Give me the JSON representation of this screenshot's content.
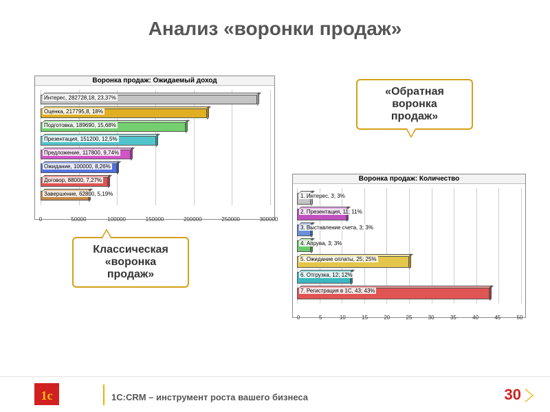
{
  "title": "Анализ «воронки продаж»",
  "callouts": {
    "classic": "Классическая «воронка продаж»",
    "reverse": "«Обратная воронка продаж»"
  },
  "chart1": {
    "type": "bar-horizontal-3d",
    "title": "Воронка продаж: Ожидаемый доход",
    "x_max": 300000,
    "x_ticks": [
      0,
      50000,
      100000,
      150000,
      200000,
      250000,
      300000
    ],
    "grid_color": "#cccccc",
    "bars": [
      {
        "label": "Интерес, 282728,18, 23,37%",
        "value": 282728,
        "fill": "#c4c4c4",
        "top": "#ececec",
        "side": "#9a9a9a"
      },
      {
        "label": "Оценка, 217795,8, 18%",
        "value": 217796,
        "fill": "#e0af24",
        "top": "#f4d876",
        "side": "#a77d12"
      },
      {
        "label": "Подготовка, 189690, 15,68%",
        "value": 189690,
        "fill": "#74d06e",
        "top": "#b8ecb4",
        "side": "#4a9a46"
      },
      {
        "label": "Презентация, 151200, 12,5%",
        "value": 151200,
        "fill": "#52c4cc",
        "top": "#a6e6ea",
        "side": "#2e8e96"
      },
      {
        "label": "Предложение, 117800, 9,74%",
        "value": 117800,
        "fill": "#d255c8",
        "top": "#eda8e8",
        "side": "#9a3492"
      },
      {
        "label": "Ожидание, 100000, 8,26%",
        "value": 100000,
        "fill": "#5470e0",
        "top": "#9aaef2",
        "side": "#3448a0"
      },
      {
        "label": "Договор, 88000, 7,27%",
        "value": 88000,
        "fill": "#e05454",
        "top": "#f29a9a",
        "side": "#a23434"
      },
      {
        "label": "Завершение, 62800, 5,19%",
        "value": 62800,
        "fill": "#c88a4a",
        "top": "#e6bf96",
        "side": "#8c5a28"
      }
    ]
  },
  "chart2": {
    "type": "bar-horizontal-3d",
    "title": "Воронка продаж: Количество",
    "x_max": 50,
    "x_ticks": [
      0,
      5,
      10,
      15,
      20,
      25,
      30,
      35,
      40,
      45,
      50
    ],
    "grid_color": "#cccccc",
    "bars": [
      {
        "label": "1. Интерес, 3; 3%",
        "value": 3,
        "fill": "#c4c4c4",
        "top": "#ececec",
        "side": "#9a9a9a"
      },
      {
        "label": "2. Презентация, 11; 11%",
        "value": 11,
        "fill": "#c050c0",
        "top": "#e6a6e6",
        "side": "#8a2e8a"
      },
      {
        "label": "3. Выставление счета, 3; 3%",
        "value": 3,
        "fill": "#6a91d8",
        "top": "#b0c6ec",
        "side": "#3e5e9c"
      },
      {
        "label": "4. Апрува, 3; 3%",
        "value": 3,
        "fill": "#6ec86e",
        "top": "#b8ecb4",
        "side": "#3e8a3e"
      },
      {
        "label": "5. Ожидание оплаты, 25; 25%",
        "value": 25,
        "fill": "#e4c74a",
        "top": "#f4e6a0",
        "side": "#a88e24"
      },
      {
        "label": "6. Отгрузка, 12; 12%",
        "value": 12,
        "fill": "#3bb8c0",
        "top": "#92e0e4",
        "side": "#1e7a80"
      },
      {
        "label": "7. Регистрация в 1С, 43; 43%",
        "value": 43,
        "fill": "#e05454",
        "top": "#f29a9a",
        "side": "#a23434"
      }
    ]
  },
  "footer": {
    "logo_text": "1c",
    "text": "1С:CRM – инструмент роста вашего бизнеса",
    "page": "30"
  },
  "colors": {
    "title": "#555555",
    "callout_border": "#d4a017",
    "accent_red": "#d02020",
    "accent_gold": "#f0b000"
  }
}
